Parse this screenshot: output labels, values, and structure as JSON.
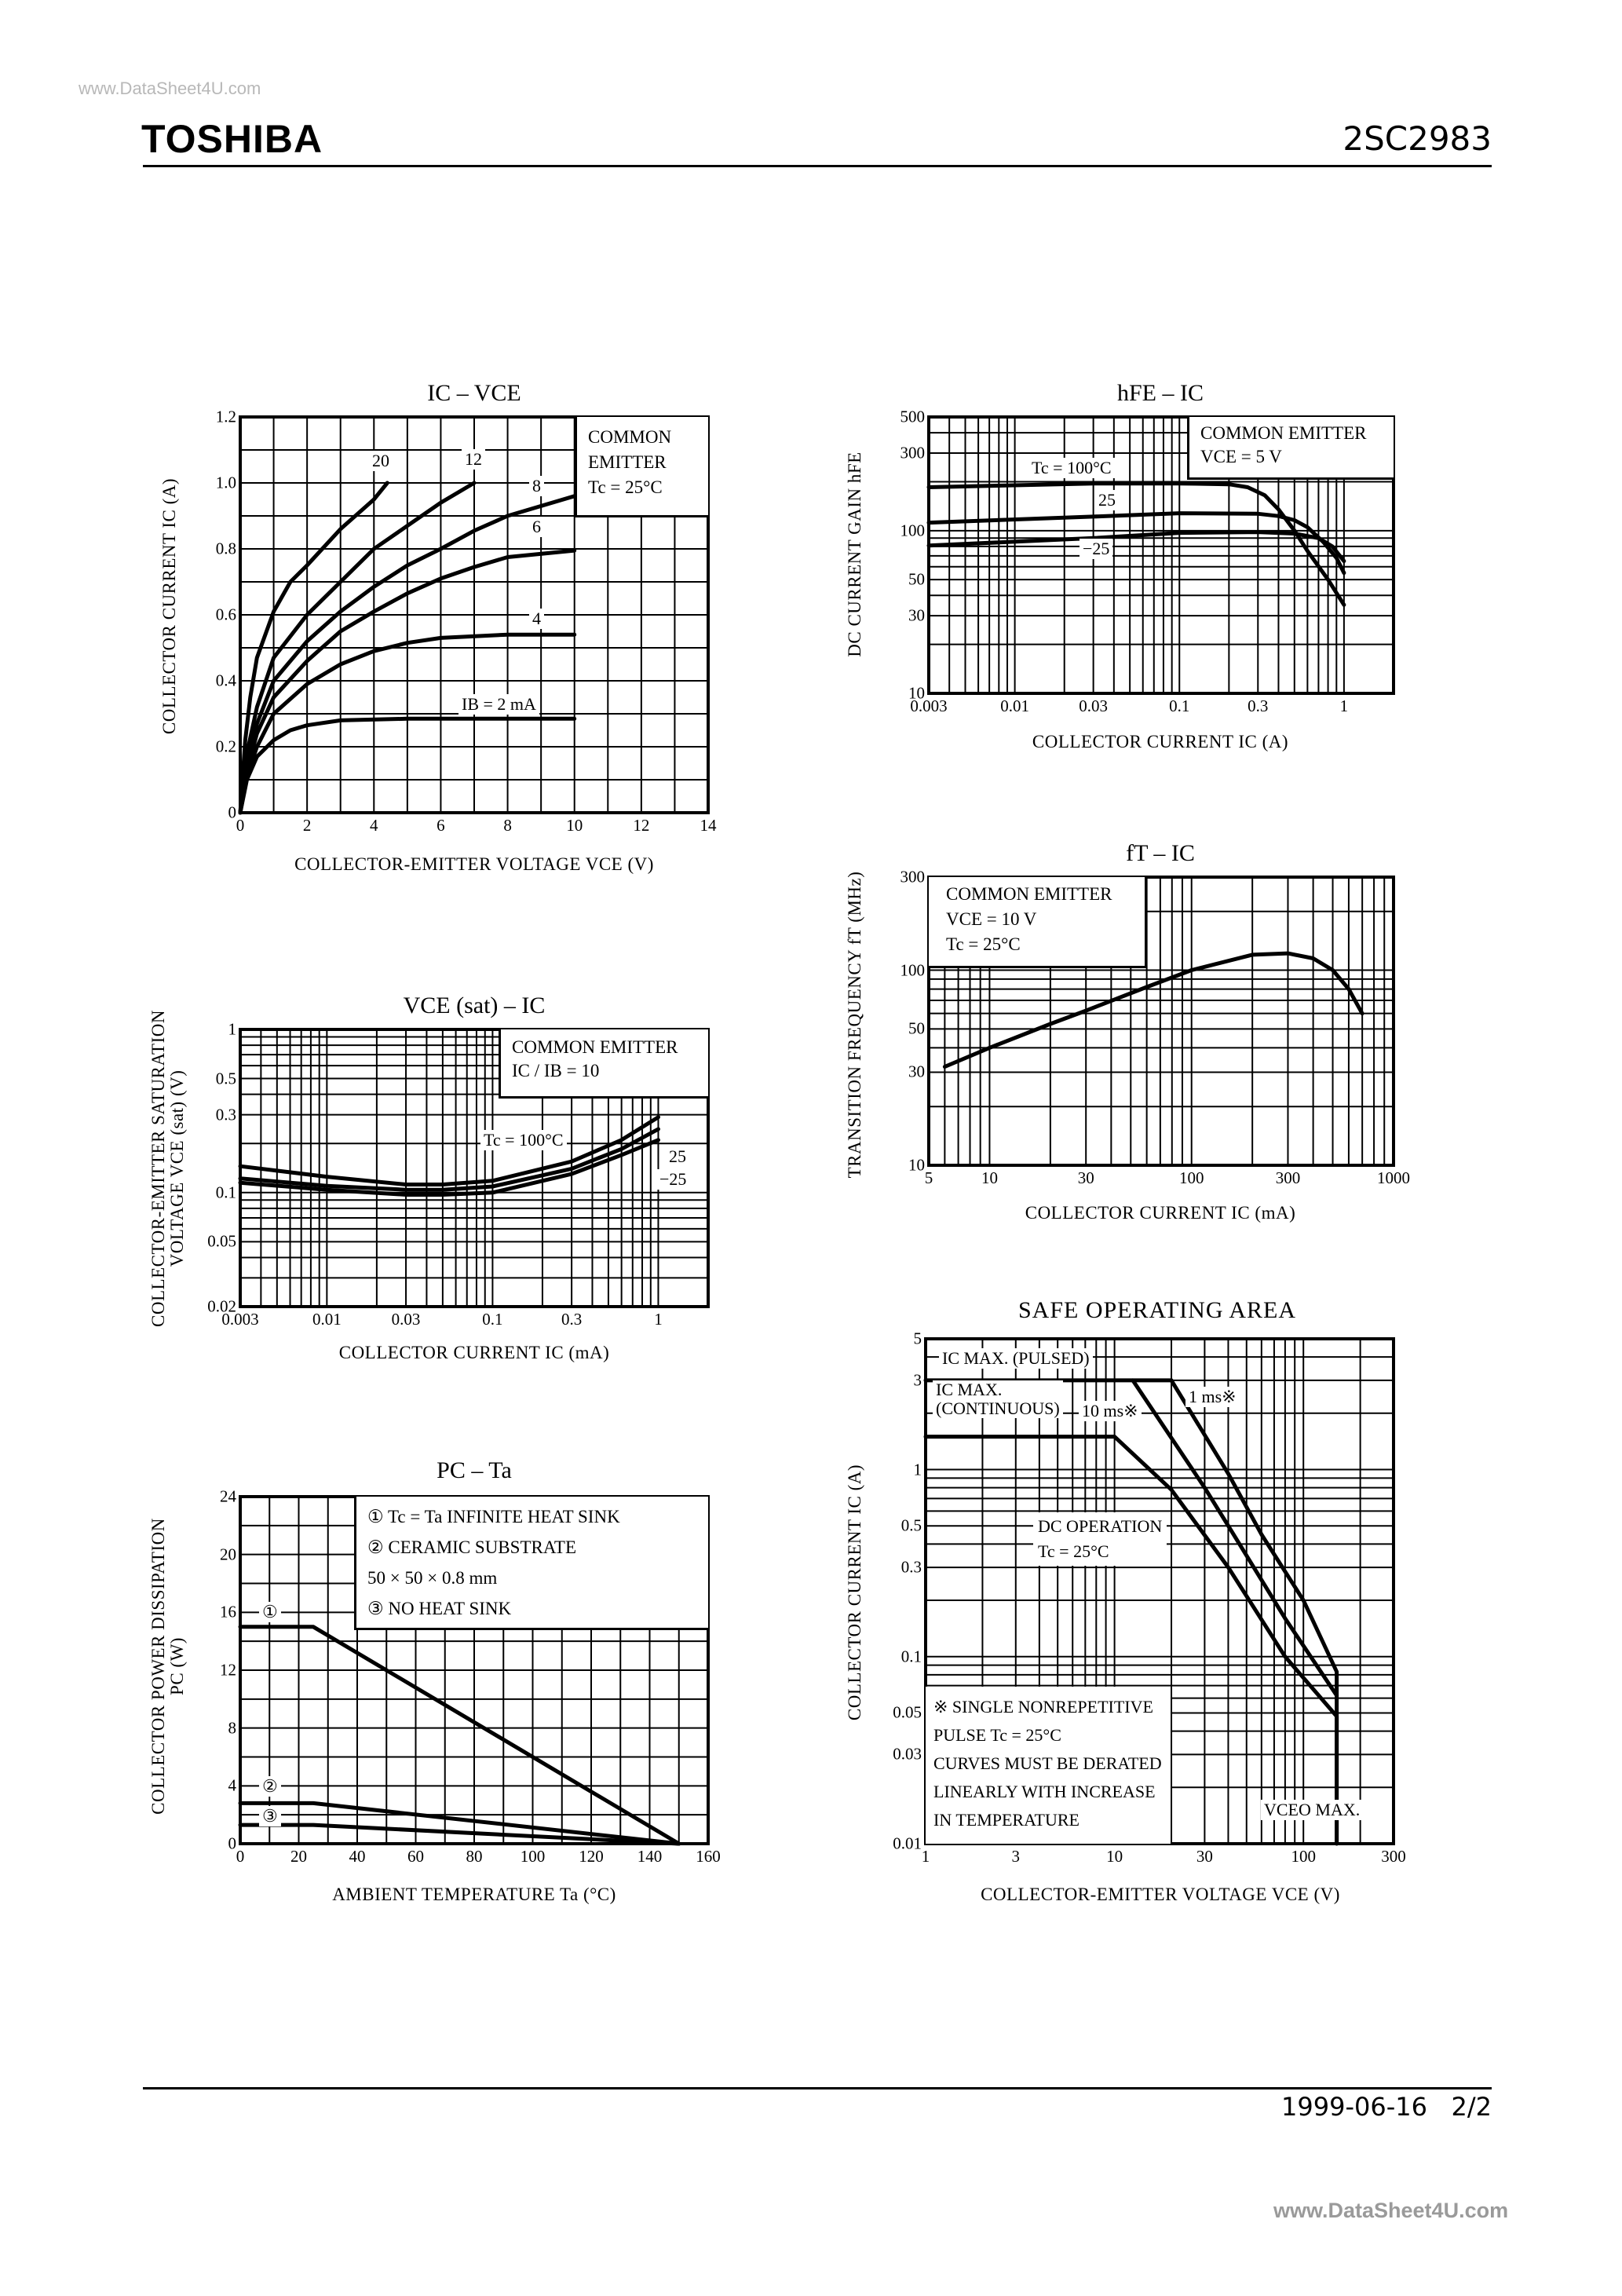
{
  "header": {
    "watermark": "www.DataSheet4U.com",
    "brand": "TOSHIBA",
    "part_number": "2SC2983"
  },
  "footer": {
    "date": "1999-06-16",
    "page": "2/2",
    "watermark": "www.DataSheet4U.com"
  },
  "chart_data": [
    {
      "type": "line",
      "title": "IC – VCE",
      "xlabel": "COLLECTOR-EMITTER VOLTAGE   VCE   (V)",
      "ylabel": "COLLECTOR CURRENT   IC   (A)",
      "xscale": "linear",
      "yscale": "linear",
      "xlim": [
        0,
        14
      ],
      "ylim": [
        0,
        1.2
      ],
      "xstep": 1,
      "ystep": 0.1,
      "xticks": [
        "0",
        "2",
        "4",
        "6",
        "8",
        "10",
        "12",
        "14"
      ],
      "yticks": [
        "0",
        "0.2",
        "0.4",
        "0.6",
        "0.8",
        "1.0",
        "1.2"
      ],
      "legend": [
        "COMMON",
        "EMITTER",
        "Tc = 25°C"
      ],
      "series": [
        {
          "name": "IB = 2 mA",
          "x": [
            0,
            0.2,
            0.5,
            1,
            1.5,
            2,
            3,
            5,
            10
          ],
          "y": [
            0,
            0.1,
            0.17,
            0.22,
            0.25,
            0.265,
            0.28,
            0.285,
            0.285
          ]
        },
        {
          "name": "4",
          "x": [
            0,
            0.2,
            0.5,
            1,
            2,
            3,
            4,
            5,
            6,
            8,
            10
          ],
          "y": [
            0,
            0.11,
            0.2,
            0.3,
            0.39,
            0.45,
            0.49,
            0.515,
            0.53,
            0.54,
            0.54
          ]
        },
        {
          "name": "6",
          "x": [
            0,
            0.2,
            0.5,
            1,
            2,
            3,
            4,
            5,
            6,
            7,
            8,
            10
          ],
          "y": [
            0,
            0.13,
            0.24,
            0.35,
            0.46,
            0.55,
            0.61,
            0.665,
            0.71,
            0.745,
            0.775,
            0.795
          ]
        },
        {
          "name": "8",
          "x": [
            0,
            0.2,
            0.5,
            1,
            2,
            3,
            4,
            5,
            6,
            7,
            8,
            10
          ],
          "y": [
            0,
            0.15,
            0.27,
            0.4,
            0.52,
            0.61,
            0.685,
            0.75,
            0.8,
            0.855,
            0.9,
            0.96
          ]
        },
        {
          "name": "12",
          "x": [
            0,
            0.2,
            0.5,
            1,
            2,
            3,
            4,
            5,
            6,
            7
          ],
          "y": [
            0,
            0.18,
            0.32,
            0.47,
            0.6,
            0.7,
            0.8,
            0.87,
            0.94,
            1.0
          ]
        },
        {
          "name": "20",
          "x": [
            0,
            0.15,
            0.3,
            0.5,
            1,
            1.5,
            2,
            3,
            4,
            4.4
          ],
          "y": [
            0,
            0.22,
            0.35,
            0.47,
            0.61,
            0.7,
            0.75,
            0.86,
            0.95,
            1.0
          ]
        }
      ]
    },
    {
      "type": "line",
      "title": "hFE – IC",
      "xlabel": "COLLECTOR CURRENT   IC   (A)",
      "ylabel": "DC CURRENT GAIN   hFE",
      "xscale": "log",
      "yscale": "log",
      "xlim": [
        0.003,
        2
      ],
      "ylim": [
        10,
        500
      ],
      "xticks": [
        "0.003",
        "0.01",
        "0.03",
        "0.1",
        "0.3",
        "1"
      ],
      "yticks": [
        "10",
        "30",
        "50",
        "100",
        "300",
        "500"
      ],
      "legend": [
        "COMMON EMITTER",
        "VCE = 5 V"
      ],
      "series": [
        {
          "name": "Tc = 100°C",
          "x": [
            0.003,
            0.03,
            0.1,
            0.2,
            0.26,
            0.33,
            0.4,
            0.5,
            0.6,
            0.8,
            1
          ],
          "y": [
            185,
            195,
            195,
            193,
            185,
            165,
            135,
            100,
            75,
            50,
            35
          ]
        },
        {
          "name": "25",
          "x": [
            0.003,
            0.03,
            0.1,
            0.3,
            0.4,
            0.5,
            0.6,
            0.75,
            0.9,
            1
          ],
          "y": [
            112,
            122,
            128,
            127,
            123,
            116,
            105,
            85,
            68,
            55
          ]
        },
        {
          "name": "−25",
          "x": [
            0.003,
            0.03,
            0.1,
            0.3,
            0.5,
            0.7,
            0.85,
            1
          ],
          "y": [
            81,
            90,
            97,
            98,
            96,
            90,
            80,
            65
          ]
        }
      ]
    },
    {
      "type": "line",
      "title": "fT – IC",
      "xlabel": "COLLECTOR CURRENT   IC   (mA)",
      "ylabel": "TRANSITION FREQUENCY   fT   (MHz)",
      "xscale": "log",
      "yscale": "log",
      "xlim": [
        5,
        1000
      ],
      "ylim": [
        10,
        300
      ],
      "xticks": [
        "5",
        "10",
        "30",
        "100",
        "300",
        "1000"
      ],
      "yticks": [
        "10",
        "30",
        "50",
        "100",
        "300"
      ],
      "legend": [
        "COMMON EMITTER",
        "VCE = 10 V",
        "Tc = 25°C"
      ],
      "series": [
        {
          "name": "fT",
          "x": [
            6,
            10,
            20,
            30,
            60,
            100,
            200,
            300,
            400,
            500,
            600,
            700
          ],
          "y": [
            32,
            40,
            53,
            62,
            82,
            100,
            120,
            122,
            115,
            100,
            80,
            60
          ]
        }
      ]
    },
    {
      "type": "line",
      "title": "VCE (sat) – IC",
      "xlabel": "COLLECTOR CURRENT   IC   (mA)",
      "ylabel": [
        "COLLECTOR-EMITTER SATURATION",
        "VOLTAGE   VCE (sat)   (V)"
      ],
      "xscale": "log",
      "yscale": "log",
      "xlim": [
        0.003,
        2
      ],
      "ylim": [
        0.02,
        1
      ],
      "xticks": [
        "0.003",
        "0.01",
        "0.03",
        "0.1",
        "0.3",
        "1"
      ],
      "yticks": [
        "0.02",
        "0.05",
        "0.1",
        "0.3",
        "0.5",
        "1"
      ],
      "legend": [
        "COMMON EMITTER",
        "IC / IB = 10"
      ],
      "series": [
        {
          "name": "Tc = 100°C",
          "x": [
            0.003,
            0.01,
            0.03,
            0.05,
            0.1,
            0.3,
            0.6,
            1
          ],
          "y": [
            0.145,
            0.125,
            0.112,
            0.112,
            0.118,
            0.155,
            0.21,
            0.29
          ]
        },
        {
          "name": "25",
          "x": [
            0.003,
            0.01,
            0.03,
            0.05,
            0.1,
            0.3,
            0.6,
            1
          ],
          "y": [
            0.122,
            0.11,
            0.104,
            0.104,
            0.109,
            0.14,
            0.185,
            0.245
          ]
        },
        {
          "name": "−25",
          "x": [
            0.003,
            0.01,
            0.03,
            0.05,
            0.1,
            0.3,
            0.6,
            1
          ],
          "y": [
            0.115,
            0.104,
            0.097,
            0.097,
            0.1,
            0.13,
            0.17,
            0.21
          ]
        }
      ]
    },
    {
      "type": "line",
      "title": "PC – Ta",
      "xlabel": "AMBIENT TEMPERATURE   Ta   (°C)",
      "ylabel": [
        "COLLECTOR POWER DISSIPATION",
        "PC   (W)"
      ],
      "xscale": "linear",
      "yscale": "linear",
      "xlim": [
        0,
        160
      ],
      "ylim": [
        0,
        24
      ],
      "xstep": 10,
      "ystep": 2,
      "xticks": [
        "0",
        "20",
        "40",
        "60",
        "80",
        "100",
        "120",
        "140",
        "160"
      ],
      "yticks": [
        "0",
        "4",
        "8",
        "12",
        "16",
        "20",
        "24"
      ],
      "legend": [
        "①   Tc = Ta INFINITE HEAT SINK",
        "②   CERAMIC SUBSTRATE",
        "      50 × 50 × 0.8 mm",
        "③   NO HEAT SINK"
      ],
      "markers": [
        "①",
        "②",
        "③"
      ],
      "series": [
        {
          "name": "①",
          "x": [
            0,
            25,
            150
          ],
          "y": [
            15,
            15,
            0
          ]
        },
        {
          "name": "②",
          "x": [
            0,
            25,
            150
          ],
          "y": [
            2.8,
            2.8,
            0
          ]
        },
        {
          "name": "③",
          "x": [
            0,
            25,
            150
          ],
          "y": [
            1.3,
            1.3,
            0
          ]
        }
      ]
    },
    {
      "type": "line",
      "title": "SAFE OPERATING AREA",
      "xlabel": "COLLECTOR-EMITTER VOLTAGE   VCE   (V)",
      "ylabel": "COLLECTOR CURRENT   IC   (A)",
      "xscale": "log",
      "yscale": "log",
      "xlim": [
        1,
        300
      ],
      "ylim": [
        0.01,
        5
      ],
      "xticks": [
        "1",
        "3",
        "10",
        "30",
        "100",
        "300"
      ],
      "yticks": [
        "0.01",
        "0.03",
        "0.05",
        "0.1",
        "0.3",
        "0.5",
        "1",
        "3",
        "5"
      ],
      "labels": {
        "pulsed": "IC MAX. (PULSED)",
        "continuous": [
          "IC MAX.",
          "(CONTINUOUS)"
        ],
        "ms10": "10 ms※",
        "ms1": "1 ms※",
        "dc": [
          "DC OPERATION",
          "Tc = 25°C"
        ],
        "vceo": "VCEO MAX."
      },
      "notes": [
        "※   SINGLE NONREPETITIVE",
        "      PULSE Tc = 25°C",
        "CURVES MUST BE DERATED",
        "LINEARLY WITH INCREASE",
        "IN TEMPERATURE"
      ],
      "series": [
        {
          "name": "IC MAX. (PULSED)",
          "x": [
            1,
            20
          ],
          "y": [
            3,
            3
          ]
        },
        {
          "name": "DC OPERATION",
          "x": [
            1,
            10,
            20,
            40,
            80,
            150,
            150
          ],
          "y": [
            1.5,
            1.5,
            0.78,
            0.3,
            0.1,
            0.048,
            0.01
          ]
        },
        {
          "name": "10 ms",
          "x": [
            12.5,
            30,
            40,
            80,
            150
          ],
          "y": [
            3,
            0.8,
            0.5,
            0.16,
            0.062
          ]
        },
        {
          "name": "1 ms",
          "x": [
            20,
            40,
            60,
            100,
            150,
            150
          ],
          "y": [
            3,
            0.95,
            0.45,
            0.2,
            0.083,
            0.01
          ]
        }
      ]
    }
  ]
}
